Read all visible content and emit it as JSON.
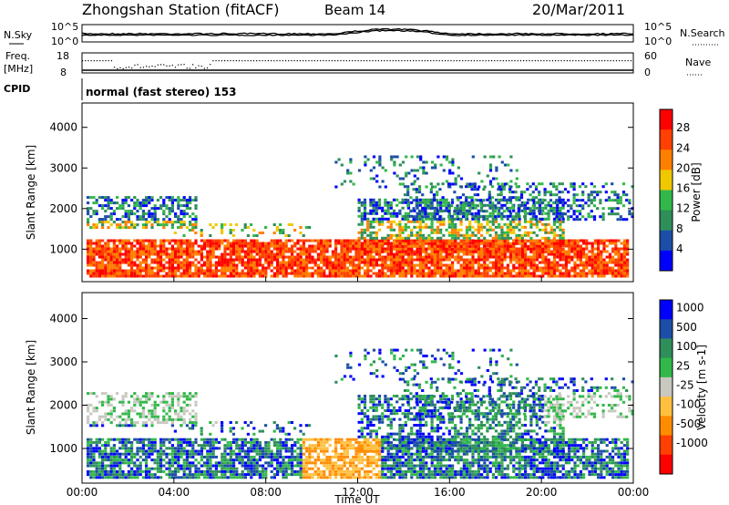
{
  "header": {
    "station": "Zhongshan Station (fitACF)",
    "beam": "Beam 14",
    "date": "20/Mar/2011"
  },
  "strip_nsky": {
    "left_label": "N.Sky",
    "right_label": "N.Search",
    "ticks_left": [
      "10^5",
      "10^0"
    ],
    "ticks_right": [
      "10^5",
      "10^0"
    ]
  },
  "strip_freq": {
    "left_label_1": "Freq.",
    "left_label_2": "[MHz]",
    "right_label": "Nave",
    "ticks_left": [
      "18",
      "8"
    ],
    "ticks_right": [
      "60",
      "0"
    ]
  },
  "strip_cpid": {
    "label": "CPID",
    "text": "normal (fast stereo) 153"
  },
  "colors": {
    "power_scale": [
      "#0000ff",
      "#1b4ea6",
      "#2f8f5a",
      "#32b84a",
      "#f0c800",
      "#ff8000",
      "#ff4000",
      "#ff0000"
    ],
    "velocity_scale": [
      "#0000ff",
      "#1b4ea6",
      "#2f8f5a",
      "#32b84a",
      "#c8c8c0",
      "#ffc040",
      "#ff8c00",
      "#ff4000",
      "#ff0000"
    ]
  },
  "chart_data": [
    {
      "type": "heatmap",
      "name": "power",
      "ylabel": "Slant Range [km]",
      "yticks": [
        "1000",
        "2000",
        "3000",
        "4000"
      ],
      "ylim": [
        200,
        4600
      ],
      "xlim": [
        "00:00",
        "24:00"
      ],
      "colorbar_label": "Power [dB]",
      "colorbar_ticks": [
        "28",
        "24",
        "20",
        "16",
        "12",
        "8",
        "4"
      ]
    },
    {
      "type": "heatmap",
      "name": "velocity",
      "ylabel": "Slant Range [km]",
      "yticks": [
        "1000",
        "2000",
        "3000",
        "4000"
      ],
      "ylim": [
        200,
        4600
      ],
      "xlabel": "Time UT",
      "xticks": [
        "00:00",
        "04:00",
        "08:00",
        "12:00",
        "16:00",
        "20:00",
        "00:00"
      ],
      "colorbar_label": "Velocity [m s-1]",
      "colorbar_ticks": [
        "1000",
        "500",
        "100",
        "25",
        "-25",
        "-100",
        "-500",
        "-1000"
      ]
    }
  ]
}
